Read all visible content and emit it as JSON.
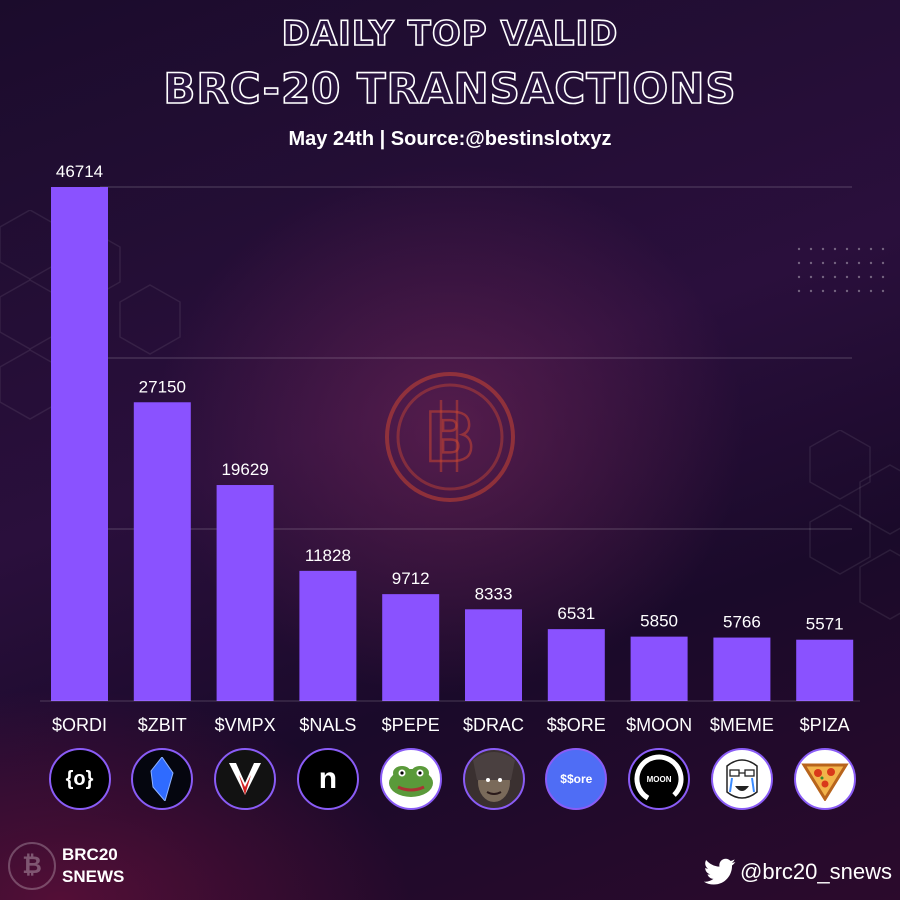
{
  "header": {
    "title_line1": "DAILY TOP VALID",
    "title_line2": "BRC-20 TRANSACTIONS",
    "subtitle": "May 24th | Source:@bestinslotxyz"
  },
  "chart_data": {
    "type": "bar",
    "categories": [
      "$ORDI",
      "$ZBIT",
      "$VMPX",
      "$NALS",
      "$PEPE",
      "$DRAC",
      "$$ORE",
      "$MOON",
      "$MEME",
      "$PIZA"
    ],
    "values": [
      46714,
      27150,
      19629,
      11828,
      9712,
      8333,
      6531,
      5850,
      5766,
      5571
    ],
    "ylim": [
      0,
      46714
    ],
    "grid": true,
    "bar_color": "#8a52ff",
    "title": "",
    "xlabel": "",
    "ylabel": ""
  },
  "logos": [
    {
      "name": "ordi-logo-icon",
      "text": "{o}"
    },
    {
      "name": "zbit-logo-icon",
      "text": ""
    },
    {
      "name": "vmpx-logo-icon",
      "text": ""
    },
    {
      "name": "nals-logo-icon",
      "text": "n"
    },
    {
      "name": "pepe-logo-icon",
      "text": ""
    },
    {
      "name": "drac-logo-icon",
      "text": ""
    },
    {
      "name": "ore-logo-icon",
      "text": "$$ore"
    },
    {
      "name": "moon-logo-icon",
      "text": "MOON"
    },
    {
      "name": "meme-logo-icon",
      "text": ""
    },
    {
      "name": "piza-logo-icon",
      "text": ""
    }
  ],
  "footer": {
    "brand_line1": "BRC20",
    "brand_line2": "SNEWS",
    "handle": "@brc20_snews"
  },
  "colors": {
    "accent": "#8a52ff",
    "logo_border": "#8a5cf6"
  }
}
